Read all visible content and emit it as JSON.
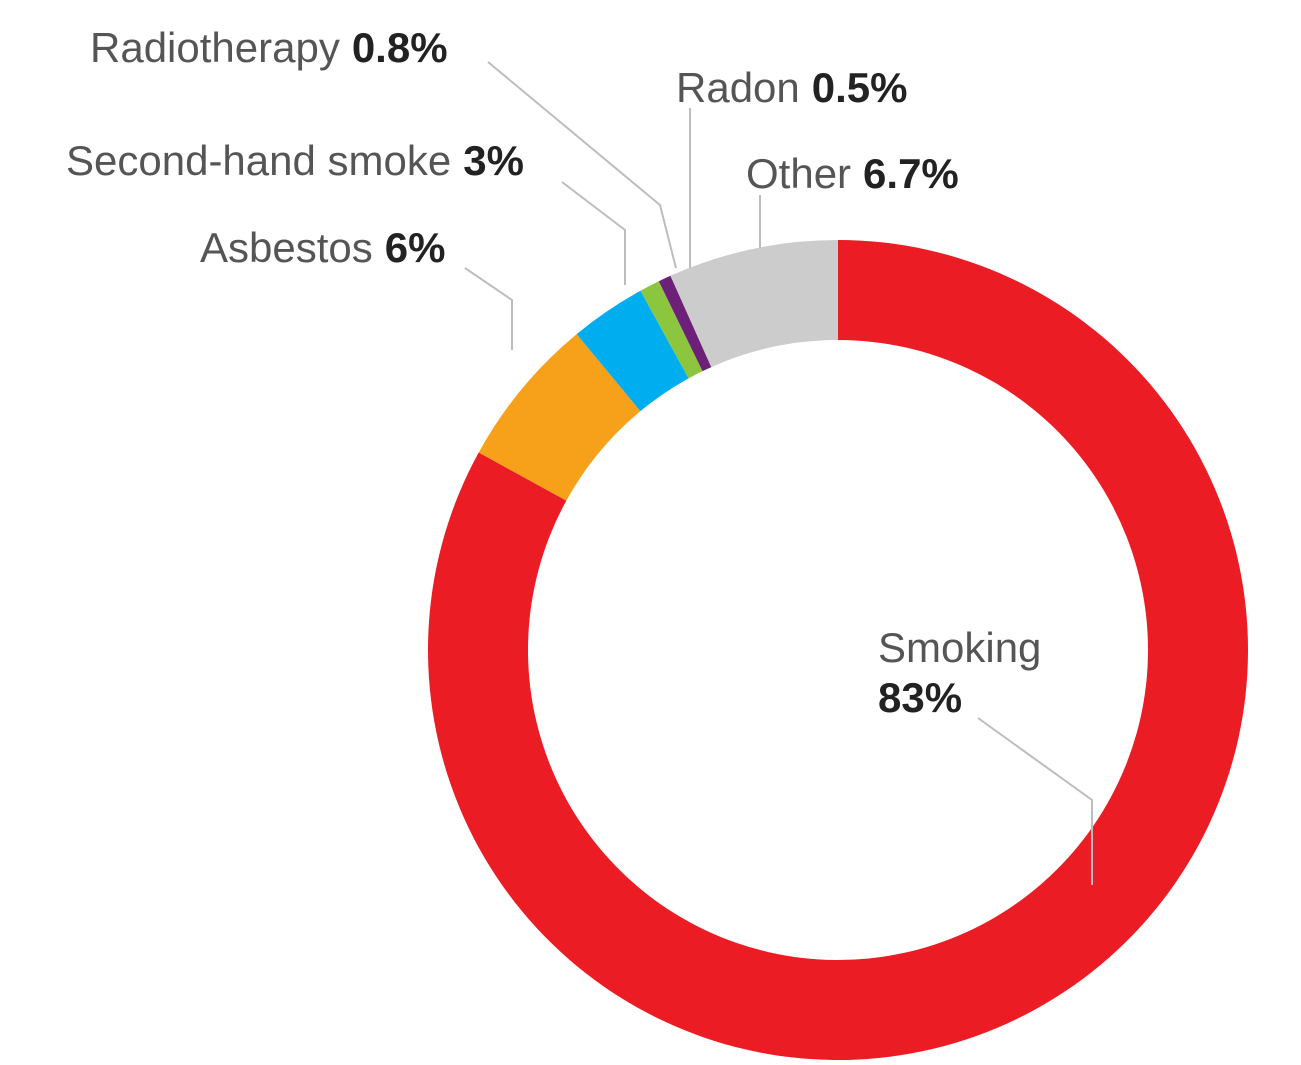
{
  "chart_data": {
    "type": "pie",
    "variant": "donut",
    "slices": [
      {
        "label": "Smoking",
        "value": 83,
        "display": "83%",
        "color": "#ec1c24"
      },
      {
        "label": "Asbestos",
        "value": 6,
        "display": "6%",
        "color": "#f7a11a"
      },
      {
        "label": "Second-hand smoke",
        "value": 3,
        "display": "3%",
        "color": "#00aeef"
      },
      {
        "label": "Radiotherapy",
        "value": 0.8,
        "display": "0.8%",
        "color": "#8cc63f"
      },
      {
        "label": "Radon",
        "value": 0.5,
        "display": "0.5%",
        "color": "#6d2077"
      },
      {
        "label": "Other",
        "value": 6.7,
        "display": "6.7%",
        "color": "#cccccc"
      }
    ]
  }
}
